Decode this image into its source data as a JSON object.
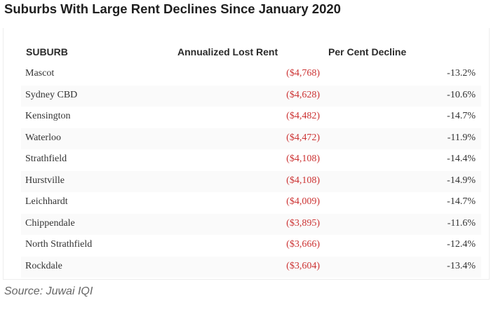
{
  "title": "Suburbs With Large Rent Declines Since January 2020",
  "source": "Source: Juwai IQI",
  "chart_data": {
    "type": "table",
    "title": "Suburbs With Large Rent Declines Since January 2020",
    "columns": [
      "SUBURB",
      "Annualized Lost Rent",
      "Per Cent Decline"
    ],
    "rows": [
      {
        "suburb": "Mascot",
        "lost_rent": "($4,768)",
        "decline": "-13.2%"
      },
      {
        "suburb": "Sydney CBD",
        "lost_rent": "($4,628)",
        "decline": "-10.6%"
      },
      {
        "suburb": "Kensington",
        "lost_rent": "($4,482)",
        "decline": "-14.7%"
      },
      {
        "suburb": "Waterloo",
        "lost_rent": "($4,472)",
        "decline": "-11.9%"
      },
      {
        "suburb": "Strathfield",
        "lost_rent": "($4,108)",
        "decline": "-14.4%"
      },
      {
        "suburb": "Hurstville",
        "lost_rent": "($4,108)",
        "decline": "-14.9%"
      },
      {
        "suburb": "Leichhardt",
        "lost_rent": "($4,009)",
        "decline": "-14.7%"
      },
      {
        "suburb": "Chippendale",
        "lost_rent": "($3,895)",
        "decline": "-11.6%"
      },
      {
        "suburb": "North Strathfield",
        "lost_rent": "($3,666)",
        "decline": "-12.4%"
      },
      {
        "suburb": "Rockdale",
        "lost_rent": "($3,604)",
        "decline": "-13.4%"
      }
    ]
  },
  "colors": {
    "negative_value": "#cc3333",
    "text": "#333333"
  }
}
